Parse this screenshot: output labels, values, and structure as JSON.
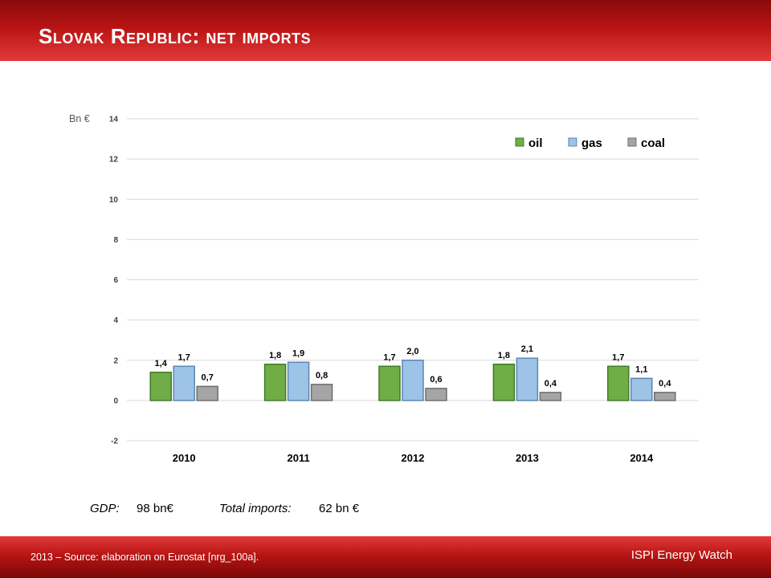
{
  "slide": {
    "title": "Slovak Republic: net imports",
    "gdp_label": "GDP:",
    "gdp_value": "98 bn€",
    "imports_label": "Total imports:",
    "imports_value": "62 bn €",
    "footer_source": "2013 – Source: elaboration on Eurostat [nrg_100a].",
    "footer_brand": "ISPI Energy Watch"
  },
  "colors": {
    "header": "#b81414",
    "oil": "#70ad47",
    "gas": "#9dc3e6",
    "coal": "#a5a5a5"
  },
  "chart_data": {
    "type": "bar",
    "ylabel": "Bn €",
    "ylim": [
      -2,
      14
    ],
    "yticks": [
      "-2",
      "0",
      "2",
      "4",
      "6",
      "8",
      "10",
      "12",
      "14"
    ],
    "grid": true,
    "legend_position": "top-right",
    "categories": [
      "2010",
      "2011",
      "2012",
      "2013",
      "2014"
    ],
    "series": [
      {
        "name": "oil",
        "values": [
          1.4,
          1.8,
          1.7,
          1.8,
          1.7
        ],
        "labels": [
          "1,4",
          "1,8",
          "1,7",
          "1,8",
          "1,7"
        ]
      },
      {
        "name": "gas",
        "values": [
          1.7,
          1.9,
          2.0,
          2.1,
          1.1
        ],
        "labels": [
          "1,7",
          "1,9",
          "2,0",
          "2,1",
          "1,1"
        ]
      },
      {
        "name": "coal",
        "values": [
          0.7,
          0.8,
          0.6,
          0.4,
          0.4
        ],
        "labels": [
          "0,7",
          "0,8",
          "0,6",
          "0,4",
          "0,4"
        ]
      }
    ]
  }
}
